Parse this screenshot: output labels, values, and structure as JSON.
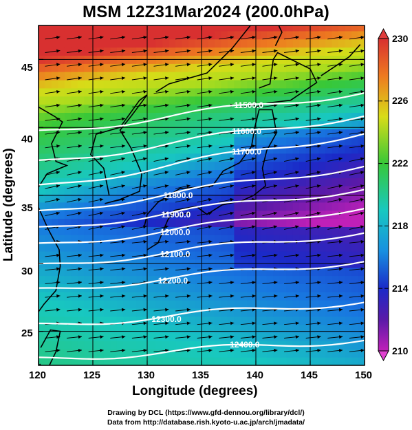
{
  "title": "MSM 12Z31Mar2024 (200.0hPa)",
  "x_axis": {
    "label": "Longitude (degrees)",
    "ticks": [
      "120",
      "125",
      "130",
      "135",
      "140",
      "145",
      "150"
    ],
    "range": [
      120,
      150
    ]
  },
  "y_axis": {
    "label": "Latitude  (degrees)",
    "ticks": [
      "25",
      "30",
      "35",
      "40",
      "45"
    ],
    "range": [
      22.5,
      47.5
    ]
  },
  "colorbar": {
    "ticks": [
      "230",
      "226",
      "222",
      "218",
      "214",
      "210"
    ],
    "range": [
      210,
      230
    ],
    "unit_hint": "temperature"
  },
  "contours": [
    {
      "label": "11500.0"
    },
    {
      "label": "11600.0"
    },
    {
      "label": "11700.0"
    },
    {
      "label": "11800.0"
    },
    {
      "label": "11900.0"
    },
    {
      "label": "12000.0"
    },
    {
      "label": "12100.0"
    },
    {
      "label": "12200.0"
    },
    {
      "label": "12300.0"
    },
    {
      "label": "12400.0"
    }
  ],
  "credits": {
    "line1": "Drawing by DCL (https://www.gfd-dennou.org/library/dcl/)",
    "line2": "Data from http://database.rish.kyoto-u.ac.jp/arch/jmadata/"
  },
  "colors": {
    "warm": "#e85a2a",
    "mid_green": "#3ec43a",
    "cyan": "#23c4d4",
    "deep_blue": "#1a2fc8",
    "contour": "#ffffff"
  }
}
